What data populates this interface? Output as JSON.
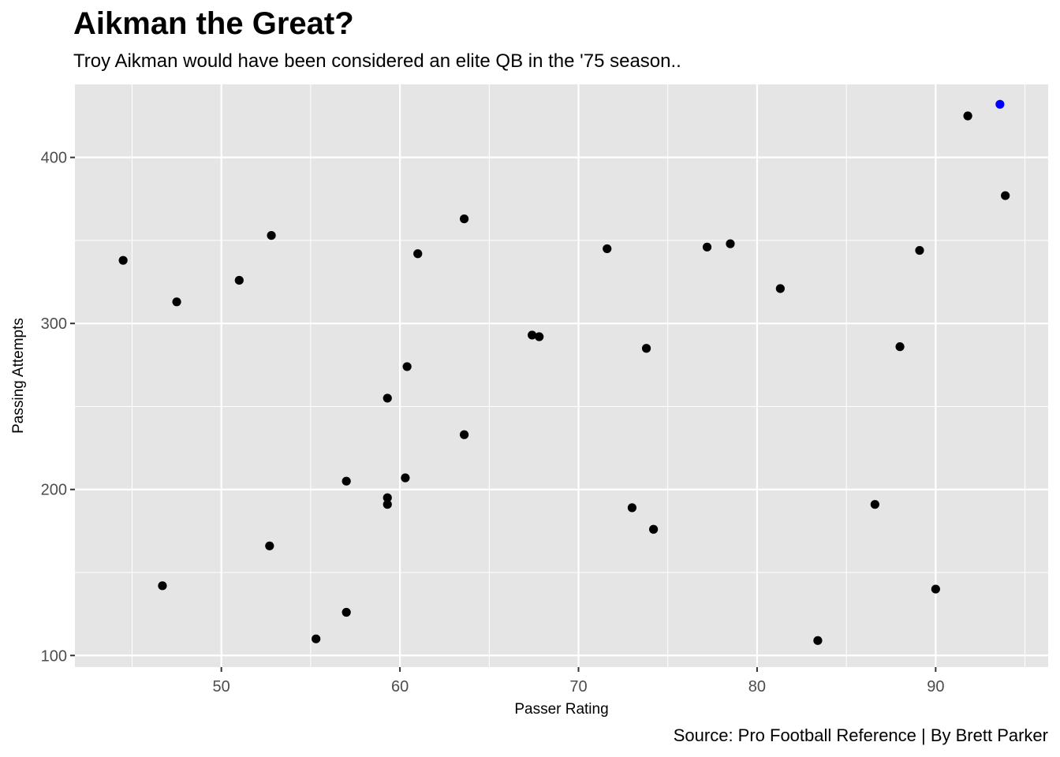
{
  "chart_data": {
    "type": "scatter",
    "title": "Aikman the Great?",
    "subtitle": "Troy Aikman would have been considered an elite QB in the '75 season..",
    "caption": "Source: Pro Football Reference | By Brett Parker",
    "xlabel": "Passer Rating",
    "ylabel": "Passing Attempts",
    "xlim": [
      41.8,
      96.3
    ],
    "ylim": [
      93,
      444
    ],
    "x_ticks": [
      50,
      60,
      70,
      80,
      90
    ],
    "y_ticks": [
      100,
      200,
      300,
      400
    ],
    "grid": true,
    "colors": {
      "panel": "#e5e5e5",
      "grid": "#ffffff",
      "point": "#000000",
      "highlight": "#0000ff",
      "tick_text": "#4d4d4d",
      "tick_mark": "#333333"
    },
    "series": [
      {
        "points": [
          [
            44.5,
            338
          ],
          [
            47.5,
            313
          ],
          [
            46.7,
            142
          ],
          [
            51.0,
            326
          ],
          [
            52.8,
            353
          ],
          [
            52.7,
            166
          ],
          [
            55.3,
            110
          ],
          [
            57.0,
            205
          ],
          [
            57.0,
            126
          ],
          [
            59.3,
            255
          ],
          [
            59.3,
            195
          ],
          [
            59.3,
            191
          ],
          [
            60.4,
            274
          ],
          [
            60.3,
            207
          ],
          [
            61.0,
            342
          ],
          [
            63.6,
            363
          ],
          [
            63.6,
            233
          ],
          [
            67.4,
            293
          ],
          [
            67.8,
            292
          ],
          [
            71.6,
            345
          ],
          [
            73.0,
            189
          ],
          [
            73.8,
            285
          ],
          [
            74.2,
            176
          ],
          [
            77.2,
            346
          ],
          [
            78.5,
            348
          ],
          [
            81.3,
            321
          ],
          [
            83.4,
            109
          ],
          [
            86.6,
            191
          ],
          [
            88.0,
            286
          ],
          [
            89.1,
            344
          ],
          [
            90.0,
            140
          ],
          [
            91.8,
            425
          ],
          [
            93.9,
            377
          ]
        ],
        "color": "#000000"
      },
      {
        "points": [
          [
            93.6,
            432
          ]
        ],
        "color": "#0000ff"
      }
    ]
  }
}
